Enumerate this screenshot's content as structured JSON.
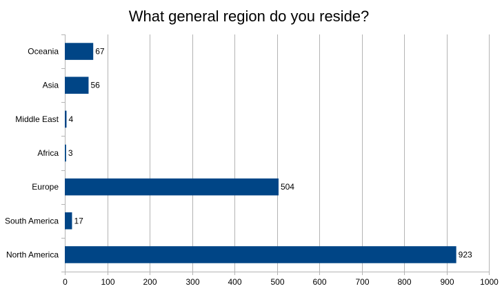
{
  "chart_data": {
    "type": "bar",
    "orientation": "horizontal",
    "title": "What general region do you reside?",
    "categories": [
      "Oceania",
      "Asia",
      "Middle East",
      "Africa",
      "Europe",
      "South America",
      "North America"
    ],
    "values": [
      67,
      56,
      4,
      3,
      504,
      17,
      923
    ],
    "xlim": [
      0,
      1000
    ],
    "xticks": [
      0,
      100,
      200,
      300,
      400,
      500,
      600,
      700,
      800,
      900,
      1000
    ],
    "grid": "vertical",
    "legend": "none",
    "bar_color": "#004586"
  }
}
